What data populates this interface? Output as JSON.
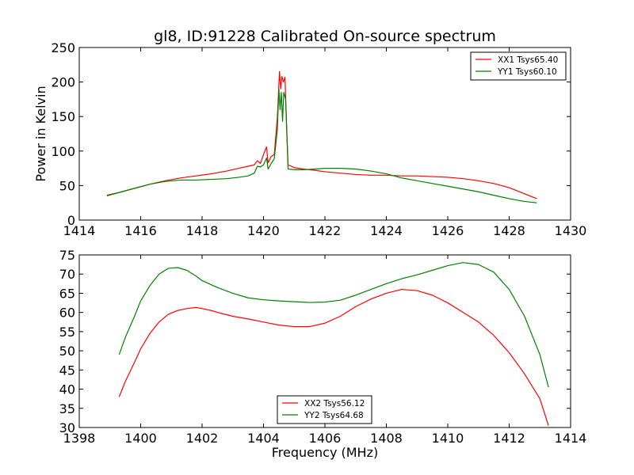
{
  "chart_data": [
    {
      "type": "line",
      "title": "gl8, ID:91228 Calibrated On-source spectrum",
      "xlabel": "",
      "ylabel": "Power in Kelvin",
      "xlim": [
        1414,
        1430
      ],
      "ylim": [
        0,
        250
      ],
      "xticks": [
        1414,
        1416,
        1418,
        1420,
        1422,
        1424,
        1426,
        1428,
        1430
      ],
      "yticks": [
        0,
        50,
        100,
        150,
        200,
        250
      ],
      "grid": false,
      "legend_position": "top-right",
      "series": [
        {
          "name": "XX1 Tsys65.40",
          "color": "#ff0000",
          "points": [
            [
              1414.9,
              36
            ],
            [
              1415.3,
              40
            ],
            [
              1415.8,
              46
            ],
            [
              1416.3,
              52
            ],
            [
              1416.8,
              57
            ],
            [
              1417.3,
              61
            ],
            [
              1417.8,
              64
            ],
            [
              1418.3,
              67
            ],
            [
              1418.8,
              71
            ],
            [
              1419.2,
              75
            ],
            [
              1419.5,
              78
            ],
            [
              1419.7,
              80
            ],
            [
              1419.8,
              86
            ],
            [
              1419.9,
              82
            ],
            [
              1420.0,
              95
            ],
            [
              1420.1,
              106
            ],
            [
              1420.15,
              83
            ],
            [
              1420.25,
              92
            ],
            [
              1420.35,
              95
            ],
            [
              1420.45,
              148
            ],
            [
              1420.52,
              215
            ],
            [
              1420.56,
              190
            ],
            [
              1420.6,
              208
            ],
            [
              1420.65,
              200
            ],
            [
              1420.7,
              207
            ],
            [
              1420.75,
              140
            ],
            [
              1420.8,
              80
            ],
            [
              1421.0,
              76
            ],
            [
              1421.3,
              74
            ],
            [
              1421.7,
              72
            ],
            [
              1422.0,
              70
            ],
            [
              1422.5,
              68
            ],
            [
              1423.0,
              66
            ],
            [
              1423.5,
              65
            ],
            [
              1424.0,
              65
            ],
            [
              1424.5,
              64
            ],
            [
              1425.0,
              64
            ],
            [
              1425.5,
              63
            ],
            [
              1426.0,
              62
            ],
            [
              1426.5,
              60
            ],
            [
              1427.0,
              57
            ],
            [
              1427.5,
              53
            ],
            [
              1428.0,
              47
            ],
            [
              1428.5,
              38
            ],
            [
              1428.9,
              31
            ]
          ]
        },
        {
          "name": "YY1 Tsys60.10",
          "color": "#008000",
          "points": [
            [
              1414.9,
              35
            ],
            [
              1415.3,
              40
            ],
            [
              1415.8,
              46
            ],
            [
              1416.3,
              52
            ],
            [
              1416.8,
              56
            ],
            [
              1417.3,
              58
            ],
            [
              1417.8,
              58
            ],
            [
              1418.3,
              59
            ],
            [
              1418.8,
              60
            ],
            [
              1419.2,
              62
            ],
            [
              1419.5,
              64
            ],
            [
              1419.7,
              68
            ],
            [
              1419.8,
              78
            ],
            [
              1419.9,
              77
            ],
            [
              1420.0,
              80
            ],
            [
              1420.1,
              90
            ],
            [
              1420.15,
              74
            ],
            [
              1420.25,
              82
            ],
            [
              1420.35,
              89
            ],
            [
              1420.45,
              130
            ],
            [
              1420.5,
              190
            ],
            [
              1420.54,
              160
            ],
            [
              1420.58,
              185
            ],
            [
              1420.62,
              143
            ],
            [
              1420.66,
              185
            ],
            [
              1420.72,
              175
            ],
            [
              1420.8,
              74
            ],
            [
              1421.0,
              73
            ],
            [
              1421.3,
              73
            ],
            [
              1421.7,
              74
            ],
            [
              1422.0,
              75
            ],
            [
              1422.5,
              75
            ],
            [
              1423.0,
              74
            ],
            [
              1423.5,
              71
            ],
            [
              1424.0,
              67
            ],
            [
              1424.5,
              61
            ],
            [
              1425.0,
              57
            ],
            [
              1425.5,
              53
            ],
            [
              1426.0,
              49
            ],
            [
              1426.5,
              45
            ],
            [
              1427.0,
              41
            ],
            [
              1427.5,
              36
            ],
            [
              1428.0,
              31
            ],
            [
              1428.5,
              27
            ],
            [
              1428.9,
              25
            ]
          ]
        }
      ]
    },
    {
      "type": "line",
      "title": "",
      "xlabel": "Frequency (MHz)",
      "ylabel": "",
      "xlim": [
        1398,
        1414
      ],
      "ylim": [
        30,
        75
      ],
      "xticks": [
        1398,
        1400,
        1402,
        1404,
        1406,
        1408,
        1410,
        1412,
        1414
      ],
      "yticks": [
        30,
        35,
        40,
        45,
        50,
        55,
        60,
        65,
        70,
        75
      ],
      "grid": false,
      "legend_position": "bottom-center",
      "series": [
        {
          "name": "XX2 Tsys56.12",
          "color": "#ff0000",
          "points": [
            [
              1399.3,
              38
            ],
            [
              1399.5,
              42
            ],
            [
              1399.8,
              47
            ],
            [
              1400.0,
              50.5
            ],
            [
              1400.3,
              54.5
            ],
            [
              1400.6,
              57.5
            ],
            [
              1400.9,
              59.5
            ],
            [
              1401.2,
              60.5
            ],
            [
              1401.5,
              61
            ],
            [
              1401.8,
              61.3
            ],
            [
              1402.0,
              61
            ],
            [
              1402.3,
              60.5
            ],
            [
              1402.6,
              59.8
            ],
            [
              1403.0,
              59
            ],
            [
              1403.5,
              58.3
            ],
            [
              1404.0,
              57.5
            ],
            [
              1404.5,
              56.7
            ],
            [
              1405.0,
              56.3
            ],
            [
              1405.5,
              56.3
            ],
            [
              1406.0,
              57.2
            ],
            [
              1406.5,
              59
            ],
            [
              1407.0,
              61.5
            ],
            [
              1407.5,
              63.5
            ],
            [
              1408.0,
              65
            ],
            [
              1408.5,
              66
            ],
            [
              1409.0,
              65.7
            ],
            [
              1409.5,
              64.5
            ],
            [
              1410.0,
              62.5
            ],
            [
              1410.5,
              60
            ],
            [
              1411.0,
              57.5
            ],
            [
              1411.5,
              54
            ],
            [
              1412.0,
              49.5
            ],
            [
              1412.5,
              44
            ],
            [
              1413.0,
              37.5
            ],
            [
              1413.2,
              32.5
            ],
            [
              1413.28,
              30.5
            ]
          ]
        },
        {
          "name": "YY2 Tsys64.68",
          "color": "#008000",
          "points": [
            [
              1399.3,
              49
            ],
            [
              1399.5,
              53.5
            ],
            [
              1399.8,
              59
            ],
            [
              1400.0,
              63
            ],
            [
              1400.3,
              67
            ],
            [
              1400.6,
              70
            ],
            [
              1400.9,
              71.5
            ],
            [
              1401.2,
              71.7
            ],
            [
              1401.5,
              71
            ],
            [
              1401.8,
              69.5
            ],
            [
              1402.0,
              68.3
            ],
            [
              1402.5,
              66.5
            ],
            [
              1403.0,
              65
            ],
            [
              1403.5,
              63.8
            ],
            [
              1404.0,
              63.3
            ],
            [
              1404.5,
              63
            ],
            [
              1405.0,
              62.8
            ],
            [
              1405.5,
              62.6
            ],
            [
              1406.0,
              62.7
            ],
            [
              1406.5,
              63.2
            ],
            [
              1407.0,
              64.5
            ],
            [
              1407.5,
              66
            ],
            [
              1408.0,
              67.5
            ],
            [
              1408.5,
              68.8
            ],
            [
              1409.0,
              69.8
            ],
            [
              1409.5,
              71
            ],
            [
              1410.0,
              72.2
            ],
            [
              1410.5,
              73
            ],
            [
              1411.0,
              72.5
            ],
            [
              1411.5,
              70.5
            ],
            [
              1412.0,
              66
            ],
            [
              1412.5,
              59
            ],
            [
              1413.0,
              49
            ],
            [
              1413.28,
              40.5
            ]
          ]
        }
      ]
    }
  ]
}
